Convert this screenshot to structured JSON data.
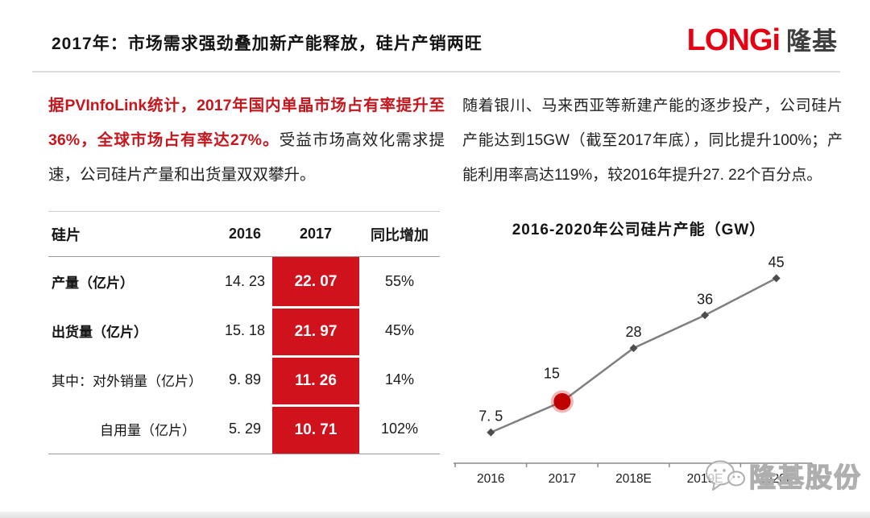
{
  "header": {
    "title": "2017年：市场需求强劲叠加新产能释放，硅片产销两旺",
    "logo": {
      "latin": "LONGi",
      "cjk": "隆基"
    }
  },
  "left": {
    "paragraph": {
      "red": "据PVInfoLink统计，2017年国内单晶市场占有率提升至36%，全球市场占有率达27%。",
      "black": "受益市场高效化需求提速，公司硅片产量和出货量双双攀升。"
    },
    "table": {
      "columns": [
        "硅片",
        "2016",
        "2017",
        "同比增加"
      ],
      "rows": [
        {
          "label": "产量（亿片）",
          "v2016": "14. 23",
          "v2017": "22. 07",
          "yoy": "55%"
        },
        {
          "label": "出货量（亿片）",
          "v2016": "15. 18",
          "v2017": "21. 97",
          "yoy": "45%"
        },
        {
          "label": "其中：对外销量（亿片）",
          "v2016": "9. 89",
          "v2017": "11. 26",
          "yoy": "14%"
        },
        {
          "label": "自用量（亿片）",
          "v2016": "5. 29",
          "v2017": "10. 71",
          "yoy": "102%"
        }
      ]
    }
  },
  "right": {
    "paragraph": "随着银川、马来西亚等新建产能的逐步投产，公司硅片产能达到15GW（截至2017年底），同比提升100%；产能利用率高达119%，较2016年提升27. 22个百分点。"
  },
  "chart_data": {
    "type": "line",
    "title": "2016-2020年公司硅片产能（GW）",
    "categories": [
      "2016",
      "2017",
      "2018E",
      "2019E",
      "2020E"
    ],
    "values": [
      7.5,
      15,
      28,
      36,
      45
    ],
    "value_labels": [
      "7. 5",
      "15",
      "28",
      "36",
      "45"
    ],
    "highlight_index": 1,
    "ylim": [
      0,
      48
    ],
    "grid": false,
    "legend": "none",
    "line_color": "#7f7f7f",
    "marker_color": "#4d4d4d",
    "axis_color": "#8a8a8a",
    "highlight_color": "#c00000"
  },
  "watermark": {
    "text": "隆基股份"
  },
  "colors": {
    "brand_red": "#e60012",
    "table_highlight_red": "#d0121c",
    "emphasis_text_red": "#c5161d"
  }
}
